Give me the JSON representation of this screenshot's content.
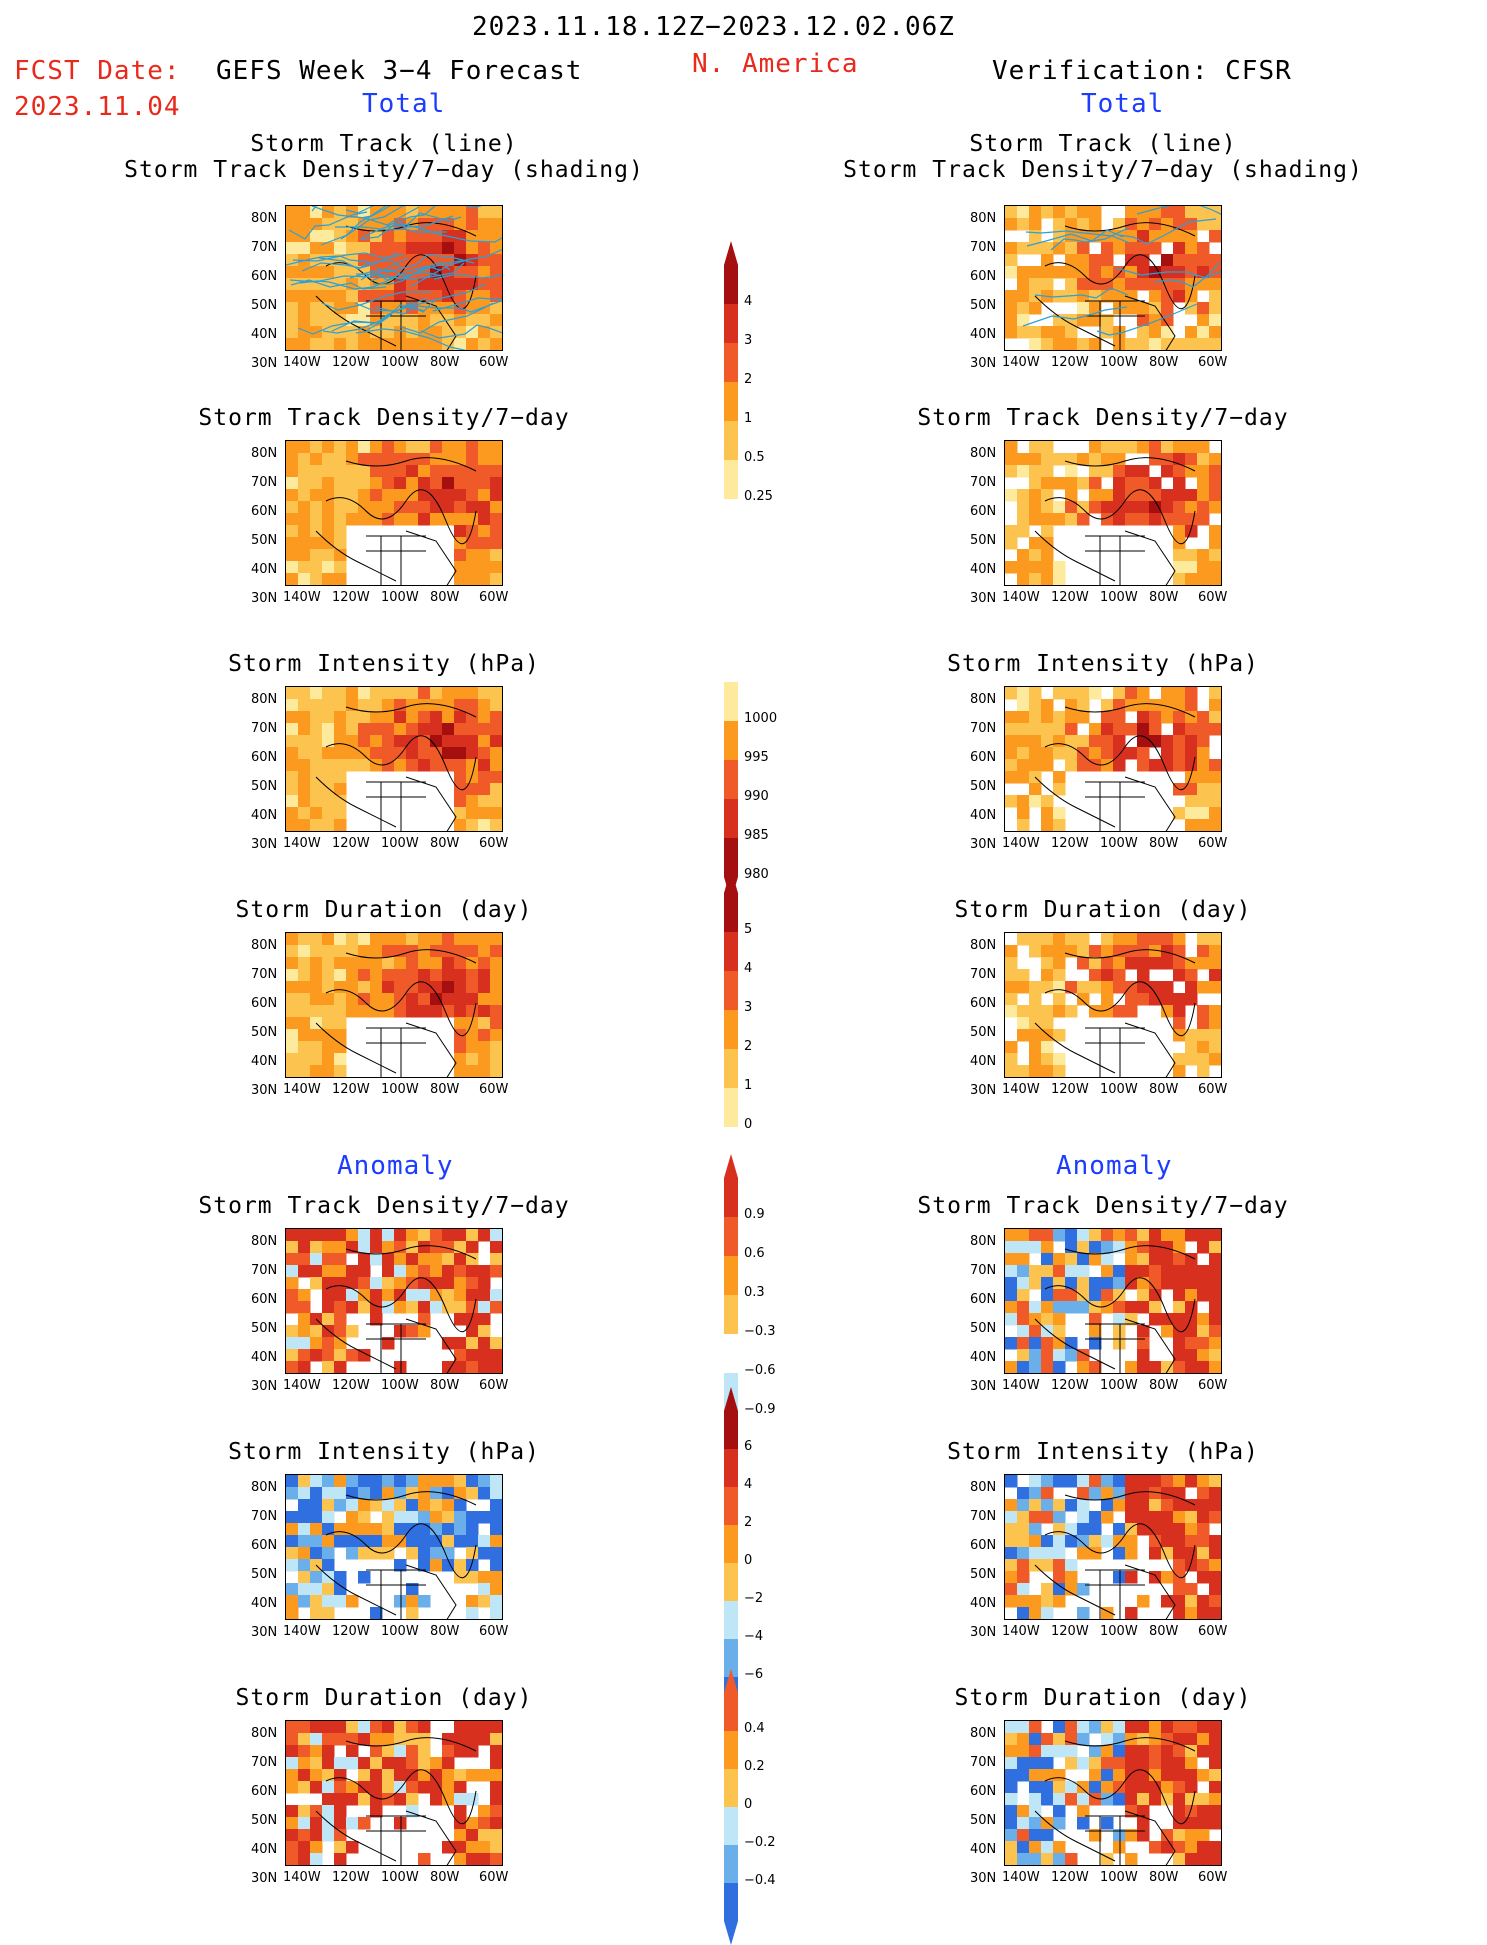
{
  "header": {
    "period": "2023.11.18.12Z−2023.12.02.06Z",
    "fcst_label": "FCST Date:",
    "fcst_date": "2023.11.04",
    "model": "GEFS Week 3−4 Forecast",
    "region": "N. America",
    "verification": "Verification: CFSR",
    "left_section": "Total",
    "right_section": "Total",
    "left_anomaly": "Anomaly",
    "right_anomaly": "Anomaly"
  },
  "titles": {
    "track_line": "Storm Track (line)",
    "track_shading": "Storm Track Density/7−day (shading)",
    "density": "Storm Track Density/7−day",
    "intensity": "Storm Intensity (hPa)",
    "duration": "Storm Duration (day)"
  },
  "axes": {
    "lat": [
      "80N",
      "70N",
      "60N",
      "50N",
      "40N",
      "30N"
    ],
    "lon": [
      "140W",
      "120W",
      "100W",
      "80W",
      "60W"
    ]
  },
  "colorbars": {
    "density": [
      "4",
      "3",
      "2",
      "1",
      "0.5",
      "0.25"
    ],
    "intensity": [
      "1000",
      "995",
      "990",
      "985",
      "980"
    ],
    "duration": [
      "5",
      "4",
      "3",
      "2",
      "1",
      "0"
    ],
    "density_anom": [
      "0.9",
      "0.6",
      "0.3",
      "−0.3",
      "−0.6",
      "−0.9"
    ],
    "intensity_anom": [
      "6",
      "4",
      "2",
      "0",
      "−2",
      "−4",
      "−6"
    ],
    "duration_anom": [
      "0.4",
      "0.2",
      "0",
      "−0.2",
      "−0.4"
    ]
  },
  "colors": {
    "dark_red": "#a50f0f",
    "red": "#d7301f",
    "orange_red": "#f05a28",
    "orange": "#fb9a1e",
    "light_orange": "#fdc34f",
    "yellow": "#fdea9c",
    "light_blue": "#bfe6f7",
    "mid_blue": "#6aaeea",
    "blue": "#2f6fe0",
    "track_line": "#2aa0d8"
  }
}
